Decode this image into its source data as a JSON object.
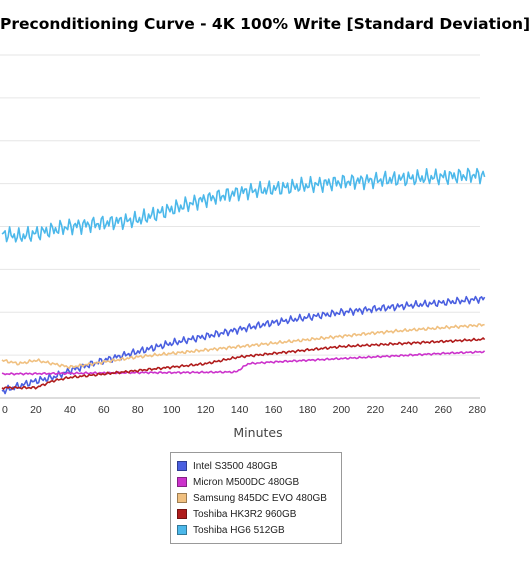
{
  "chart_data": {
    "type": "line",
    "title": "Preconditioning Curve - 4K 100% Write [Standard Deviation]",
    "xlabel": "Minutes",
    "ylabel": "",
    "xlim": [
      0,
      285
    ],
    "ylim": [
      0,
      100
    ],
    "x_ticks": [
      "0",
      "20",
      "40",
      "60",
      "80",
      "100",
      "120",
      "140",
      "160",
      "180",
      "200",
      "220",
      "240",
      "260",
      "280"
    ],
    "grid": "horizontal",
    "legend_position": "bottom",
    "series": [
      {
        "name": "Intel S3500 480GB",
        "color": "#4a5fe0",
        "x": [
          0,
          20,
          30,
          40,
          60,
          80,
          100,
          120,
          140,
          160,
          180,
          200,
          220,
          240,
          260,
          280,
          285
        ],
        "y": [
          2,
          5,
          6,
          8,
          11,
          13.5,
          16,
          18,
          20,
          22,
          23.5,
          25,
          26,
          27,
          27.8,
          28.8,
          29
        ]
      },
      {
        "name": "Micron M500DC 480GB",
        "color": "#cc33cc",
        "x": [
          0,
          20,
          40,
          60,
          80,
          100,
          120,
          138,
          145,
          160,
          180,
          200,
          220,
          240,
          260,
          280,
          285
        ],
        "y": [
          7,
          7.1,
          7.2,
          7.3,
          7.4,
          7.4,
          7.5,
          7.6,
          10,
          10.5,
          11,
          11.5,
          12,
          12.5,
          13,
          13.4,
          13.5
        ]
      },
      {
        "name": "Samsung 845DC EVO 480GB",
        "color": "#f0c080",
        "x": [
          0,
          10,
          20,
          30,
          40,
          60,
          80,
          100,
          120,
          140,
          160,
          180,
          200,
          220,
          240,
          260,
          280,
          285
        ],
        "y": [
          11,
          10,
          11,
          10,
          9,
          10.5,
          12,
          13,
          14,
          15,
          16,
          17,
          18,
          19,
          19.8,
          20.5,
          21.2,
          21.4
        ]
      },
      {
        "name": "Toshiba HK3R2 960GB",
        "color": "#b01c1c",
        "x": [
          0,
          10,
          20,
          30,
          40,
          60,
          80,
          100,
          120,
          140,
          160,
          180,
          200,
          220,
          240,
          260,
          280,
          285
        ],
        "y": [
          3,
          3,
          3,
          5,
          6,
          7,
          8,
          9,
          10,
          12,
          13,
          14,
          15,
          15.5,
          16,
          16.5,
          17,
          17.2
        ]
      },
      {
        "name": "Toshiba HG6 512GB",
        "color": "#4cb8ea",
        "x": [
          0,
          10,
          20,
          30,
          40,
          60,
          80,
          100,
          120,
          140,
          160,
          180,
          200,
          220,
          240,
          260,
          280,
          285
        ],
        "y": [
          48,
          47,
          48,
          49,
          50,
          51,
          52,
          55,
          58,
          60,
          61,
          62,
          63,
          63.5,
          64,
          64.5,
          65,
          65
        ]
      }
    ]
  }
}
